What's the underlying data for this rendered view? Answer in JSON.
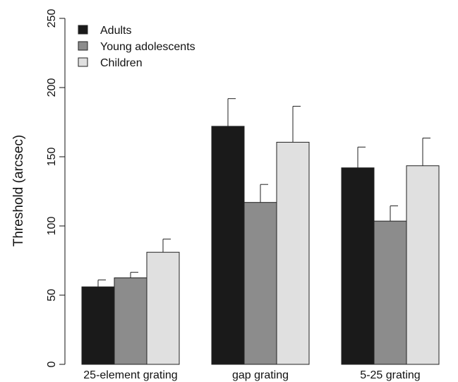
{
  "chart_data": {
    "type": "bar",
    "title": "",
    "xlabel": "",
    "ylabel": "Threshold (arcsec)",
    "ylim": [
      0,
      250
    ],
    "yticks": [
      0,
      50,
      100,
      150,
      200,
      250
    ],
    "grid": false,
    "legend_position": "top-left",
    "categories": [
      "25-element grating",
      "gap grating",
      "5-25 grating"
    ],
    "series": [
      {
        "name": "Adults",
        "color": "#1a1a1a",
        "values": [
          56,
          172,
          142
        ],
        "errors": [
          5,
          20,
          15
        ]
      },
      {
        "name": "Young adolescents",
        "color": "#8c8c8c",
        "values": [
          62.5,
          117,
          103.5
        ],
        "errors": [
          4,
          13,
          11
        ]
      },
      {
        "name": "Children",
        "color": "#e0e0e0",
        "values": [
          81,
          160.5,
          143.5
        ],
        "errors": [
          9.5,
          26,
          20
        ]
      }
    ],
    "error_bars": "upper-only"
  }
}
